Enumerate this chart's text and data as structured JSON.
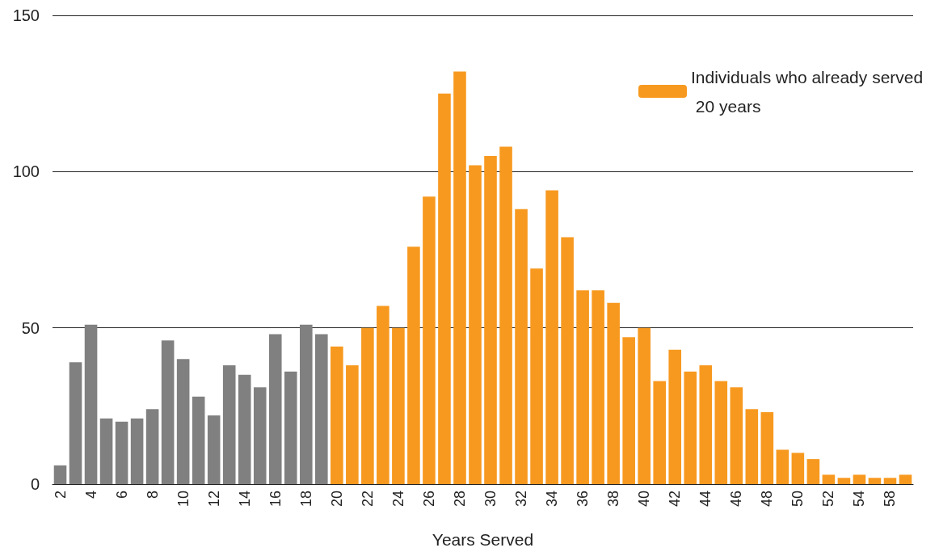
{
  "chart_data": {
    "type": "bar",
    "xlabel": "Years Served",
    "categories": [
      "2",
      null,
      "4",
      null,
      "6",
      null,
      "8",
      null,
      "10",
      null,
      "12",
      null,
      "14",
      null,
      "16",
      null,
      "18",
      null,
      "20",
      null,
      "22",
      null,
      "24",
      null,
      "26",
      null,
      "28",
      null,
      "30",
      null,
      "32",
      null,
      "34",
      null,
      "36",
      null,
      "38",
      null,
      "40",
      null,
      "42",
      null,
      "44",
      null,
      "46",
      null,
      "48",
      null,
      "50",
      null,
      "52",
      null,
      "54",
      null,
      "58",
      null
    ],
    "series": [
      {
        "color": "#808080",
        "values": [
          6,
          39,
          51,
          21,
          20,
          21,
          24,
          46,
          40,
          28,
          22,
          38,
          35,
          31,
          48,
          36,
          51,
          48,
          null,
          null,
          null,
          null,
          null,
          null,
          null,
          null,
          null,
          null,
          null,
          null,
          null,
          null,
          null,
          null,
          null,
          null,
          null,
          null,
          null,
          null,
          null,
          null,
          null,
          null,
          null,
          null,
          null,
          null,
          null,
          null,
          null,
          null,
          null,
          null,
          null,
          null
        ]
      },
      {
        "name": "Individuals who already served 20 years",
        "color": "#f7991f",
        "values": [
          null,
          null,
          null,
          null,
          null,
          null,
          null,
          null,
          null,
          null,
          null,
          null,
          null,
          null,
          null,
          null,
          null,
          null,
          44,
          38,
          50,
          57,
          50,
          76,
          92,
          125,
          132,
          102,
          105,
          108,
          88,
          69,
          94,
          79,
          62,
          62,
          58,
          47,
          50,
          33,
          43,
          36,
          38,
          33,
          31,
          24,
          23,
          11,
          10,
          8,
          3,
          2,
          3,
          2,
          2,
          3
        ]
      }
    ],
    "ylim": [
      0,
      150
    ],
    "yticks": [
      0,
      50,
      100,
      150
    ],
    "grid": "y",
    "legend": "top right"
  }
}
